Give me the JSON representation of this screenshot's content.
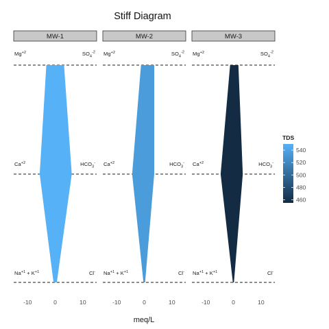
{
  "chart_data": {
    "type": "area",
    "title": "Stiff Diagram",
    "xlabel": "meq/L",
    "ylabel": "",
    "xlim": [
      -15,
      15
    ],
    "x_ticks": [
      -10,
      0,
      10
    ],
    "x_tick_labels": [
      "-10",
      "0",
      "10"
    ],
    "ion_rows": [
      {
        "cation": "Mg",
        "cation_sup": "+2",
        "anion": "SO",
        "anion_sub": "4",
        "anion_sup": "-2"
      },
      {
        "cation": "Ca",
        "cation_sup": "+2",
        "anion": "HCO",
        "anion_sub": "3",
        "anion_sup": "-"
      },
      {
        "cation": "Na",
        "cation_sup": "+1",
        "cation_extra": " + K",
        "cation_extra_sup": "+1",
        "anion": "Cl",
        "anion_sub": "",
        "anion_sup": "-"
      }
    ],
    "panels": [
      {
        "label": "MW-1",
        "tds": 550,
        "cations": [
          3.2,
          5.6,
          0.6
        ],
        "anions": [
          3.2,
          6.0,
          0.6
        ]
      },
      {
        "label": "MW-2",
        "tds": 535,
        "cations": [
          1.2,
          4.4,
          0.3
        ],
        "anions": [
          3.6,
          3.6,
          0.3
        ]
      },
      {
        "label": "MW-3",
        "tds": 455,
        "cations": [
          1.2,
          4.6,
          0.2
        ],
        "anions": [
          1.8,
          3.4,
          0.2
        ]
      }
    ],
    "legend": {
      "title": "TDS",
      "position": "right",
      "range": [
        455,
        550
      ],
      "ticks": [
        460,
        480,
        500,
        520,
        540
      ],
      "color_low": "#132B43",
      "color_high": "#56B1F7"
    },
    "grid": false
  }
}
